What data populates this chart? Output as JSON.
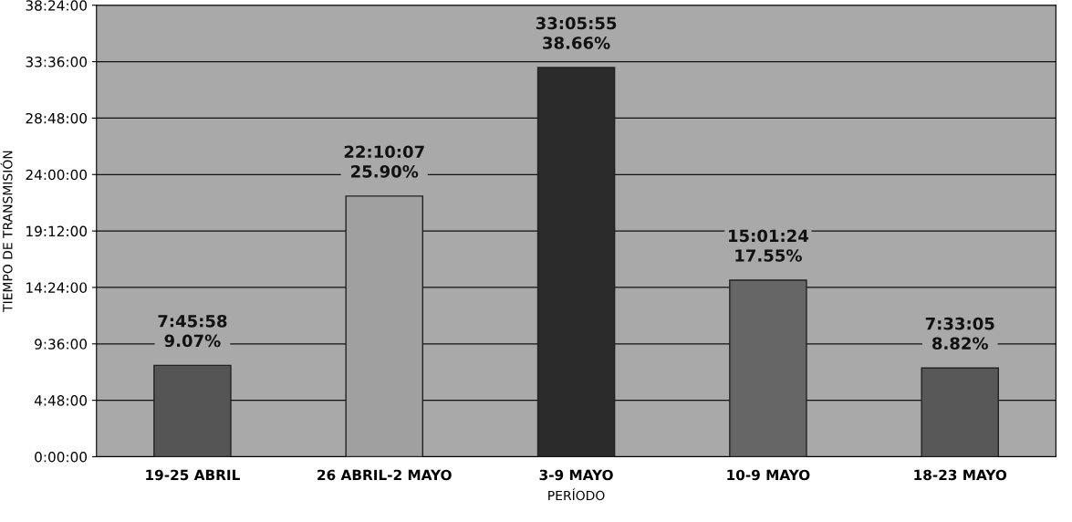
{
  "chart_data": {
    "type": "bar",
    "xlabel": "PERÍODO",
    "ylabel": "TIEMPO DE TRANSMISIÓN",
    "categories": [
      "19-25 ABRIL",
      "26 ABRIL-2 MAYO",
      "3-9 MAYO",
      "10-9 MAYO",
      "18-23 MAYO"
    ],
    "values": [
      7.77,
      22.17,
      33.1,
      15.02,
      7.55
    ],
    "colors": [
      "#555555",
      "#a0a0a0",
      "#2b2b2b",
      "#666666",
      "#585858"
    ],
    "annotations": [
      {
        "text": "7:45:58\n9.07%",
        "x": "19-25 ABRIL",
        "y": 7.77
      },
      {
        "text": "22:10:07\n25.90%",
        "x": "26 ABRIL-2 MAYO",
        "y": 22.17
      },
      {
        "text": "33:05:55\n38.66%",
        "x": "3-9 MAYO",
        "y": 33.1
      },
      {
        "text": "15:01:24\n17.55%",
        "x": "10-9 MAYO",
        "y": 15.02
      },
      {
        "text": "7:33:05\n8.82%",
        "x": "18-23 MAYO",
        "y": 7.55
      }
    ],
    "ylim": [
      0,
      38.4
    ],
    "yticks": [
      {
        "value": 0,
        "label": "0:00:00"
      },
      {
        "value": 4.8,
        "label": "4:48:00"
      },
      {
        "value": 9.6,
        "label": "9:36:00"
      },
      {
        "value": 14.4,
        "label": "14:24:00"
      },
      {
        "value": 19.2,
        "label": "19:12:00"
      },
      {
        "value": 24,
        "label": "24:00:00"
      },
      {
        "value": 28.8,
        "label": "28:48:00"
      },
      {
        "value": 33.6,
        "label": "33:36:00"
      },
      {
        "value": 38.4,
        "label": "38:24:00"
      }
    ],
    "grid": "y"
  }
}
